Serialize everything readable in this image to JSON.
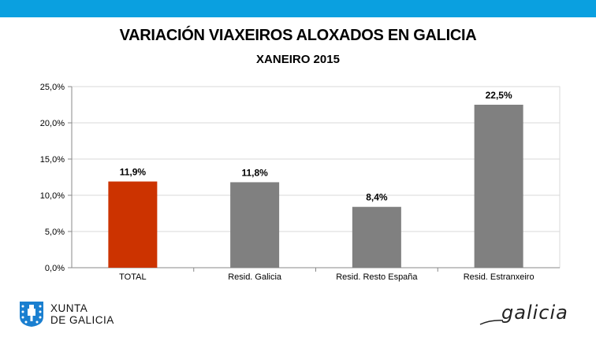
{
  "header": {
    "title": "VARIACIÓN VIAXEIROS ALOXADOS EN GALICIA",
    "subtitle": "XANEIRO 2015"
  },
  "chart_data": {
    "type": "bar",
    "title": "VARIACIÓN VIAXEIROS ALOXADOS EN GALICIA",
    "subtitle": "XANEIRO 2015",
    "categories": [
      "TOTAL",
      "Resid. Galicia",
      "Resid. Resto España",
      "Resid. Estranxeiro"
    ],
    "values": [
      11.9,
      11.8,
      8.4,
      22.5
    ],
    "value_labels": [
      "11,9%",
      "11,8%",
      "8,4%",
      "22,5%"
    ],
    "bar_colors": [
      "#cc3300",
      "#808080",
      "#808080",
      "#808080"
    ],
    "xlabel": "",
    "ylabel": "",
    "ylim": [
      0,
      25
    ],
    "yticks": [
      0,
      5,
      10,
      15,
      20,
      25
    ],
    "ytick_labels": [
      "0,0%",
      "5,0%",
      "10,0%",
      "15,0%",
      "20,0%",
      "25,0%"
    ],
    "grid": true,
    "legend": "none"
  },
  "footer": {
    "xunta_line1": "XUNTA",
    "xunta_line2": "DE GALICIA",
    "galicia_brand": "galicia"
  },
  "colors": {
    "top_bar": "#0aa0e0",
    "grid": "#d9d9d9",
    "axis": "#888888"
  }
}
